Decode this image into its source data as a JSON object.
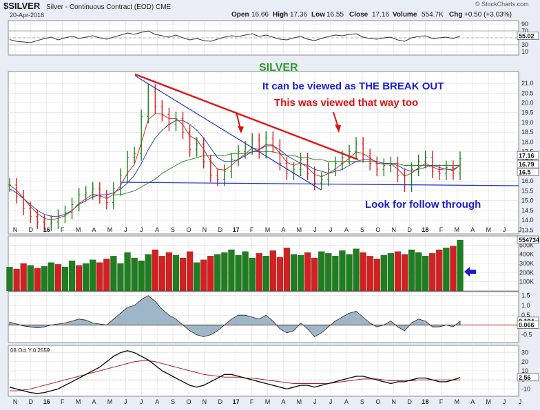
{
  "header": {
    "symbol": "$SILVER",
    "description": "Silver - Continuous Contract (EOD)",
    "exchange": "CME",
    "date": "20-Apr-2018",
    "open_label": "Open",
    "open": "16.66",
    "high_label": "High",
    "high": "17.36",
    "low_label": "Low",
    "low": "16.55",
    "close_label": "Close",
    "close": "17.16",
    "volume_label": "Volume",
    "volume": "554.7K",
    "chg_label": "Chg",
    "chg": "+0.50 (+3.03%)",
    "copyright": "© StockCharts.com"
  },
  "annotations": {
    "title": "SILVER",
    "breakout": "It can be viewed as THE BREAK OUT",
    "viewed": "This was viewed that way too",
    "follow": "Look for follow through"
  },
  "indicator_label": "08 Oct Y:0.2559",
  "colors": {
    "background": "#e9eef6",
    "panel": "#ffffff",
    "price": "#1a1a1a",
    "bar_up": "#1e7f1e",
    "bar_down": "#d42020",
    "downtrend_red": "#e01818",
    "trend_blue": "#2030c8",
    "ma_green": "#2c8a2c",
    "ma_blue": "#2a3fbf",
    "ma_red": "#d42a2a",
    "title_green": "#2f9a2f",
    "text_blue": "#1c1ccf",
    "text_red": "#dd1111"
  },
  "chart_data": {
    "type": "line",
    "x_tick_labels": [
      "N",
      "D",
      "16",
      "F",
      "M",
      "A",
      "M",
      "J",
      "J",
      "A",
      "S",
      "O",
      "N",
      "D",
      "17",
      "F",
      "M",
      "A",
      "M",
      "J",
      "J",
      "A",
      "S",
      "O",
      "N",
      "D",
      "18",
      "F",
      "M",
      "A",
      "M",
      "J",
      "J"
    ],
    "price": {
      "y_ticks": [
        13.5,
        14.0,
        14.5,
        15.0,
        15.5,
        16.0,
        16.5,
        17.0,
        17.5,
        18.0,
        18.5,
        19.0,
        19.5,
        20.0,
        20.5,
        21.0
      ],
      "ylim": [
        13.3,
        21.6
      ],
      "last_price": "17.16",
      "ma_value": "16.79",
      "ma_value2": "16.5",
      "x": [
        0,
        2,
        4,
        6,
        8,
        10,
        12,
        14,
        16,
        18,
        20,
        22,
        24,
        26,
        28,
        30,
        32,
        34,
        36,
        38,
        40,
        42,
        44,
        46,
        48,
        50,
        52,
        54,
        56,
        58,
        60,
        62,
        64,
        66,
        68,
        70,
        72,
        74,
        76,
        78,
        80,
        82,
        84,
        86,
        88,
        90,
        92,
        94,
        96,
        98,
        100,
        102,
        104,
        106,
        108,
        110,
        112,
        114,
        116,
        118,
        120,
        122,
        124,
        126,
        128,
        130
      ],
      "close": [
        15.8,
        15.2,
        14.6,
        14.2,
        13.9,
        13.8,
        13.9,
        14.2,
        14.4,
        14.8,
        15.3,
        15.4,
        15.6,
        15.2,
        14.9,
        15.6,
        16.3,
        17.2,
        17.4,
        19.3,
        20.6,
        19.8,
        19.4,
        18.9,
        19.2,
        18.5,
        17.6,
        17.9,
        17.0,
        16.3,
        16.1,
        16.5,
        17.1,
        17.5,
        17.7,
        18.1,
        17.5,
        18.2,
        17.8,
        16.9,
        16.4,
        16.6,
        17.1,
        16.4,
        15.9,
        16.1,
        16.6,
        16.9,
        17.2,
        17.5,
        17.9,
        17.3,
        16.9,
        16.6,
        16.8,
        16.9,
        16.3,
        15.8,
        16.6,
        17.0,
        17.2,
        16.5,
        16.4,
        16.7,
        16.4,
        17.16
      ],
      "sma50": [
        15.6,
        15.4,
        15.1,
        14.8,
        14.5,
        14.3,
        14.2,
        14.2,
        14.3,
        14.5,
        14.8,
        15.0,
        15.2,
        15.3,
        15.3,
        15.4,
        15.6,
        15.9,
        16.3,
        16.9,
        17.6,
        18.2,
        18.6,
        18.9,
        19.1,
        19.1,
        18.9,
        18.6,
        18.2,
        17.7,
        17.2,
        17.0,
        17.0,
        17.1,
        17.3,
        17.5,
        17.6,
        17.8,
        17.8,
        17.6,
        17.3,
        17.1,
        16.9,
        16.8,
        16.6,
        16.5,
        16.4,
        16.5,
        16.6,
        16.8,
        17.0,
        17.1,
        17.1,
        17.0,
        16.9,
        16.9,
        16.8,
        16.6,
        16.5,
        16.6,
        16.7,
        16.8,
        16.7,
        16.6,
        16.6,
        16.79
      ],
      "sma200": [
        16.3,
        16.2,
        16.0,
        15.8,
        15.6,
        15.4,
        15.3,
        15.2,
        15.2,
        15.2,
        15.2,
        15.2,
        15.2,
        15.2,
        15.2,
        15.3,
        15.3,
        15.4,
        15.5,
        15.7,
        15.9,
        16.1,
        16.4,
        16.6,
        16.8,
        17.0,
        17.1,
        17.2,
        17.3,
        17.3,
        17.3,
        17.3,
        17.4,
        17.4,
        17.4,
        17.5,
        17.5,
        17.5,
        17.5,
        17.4,
        17.3,
        17.3,
        17.2,
        17.2,
        17.1,
        17.1,
        17.0,
        17.0,
        17.0,
        17.0,
        17.0,
        17.0,
        17.0,
        17.0,
        16.9,
        16.9,
        16.9,
        16.8,
        16.8,
        16.8,
        16.8,
        16.8,
        16.8,
        16.8,
        16.8,
        16.8
      ],
      "sma200_start_x": 30
    },
    "rsi": {
      "y_ticks": [
        10,
        30,
        50,
        70,
        90
      ],
      "ylim": [
        0,
        100
      ],
      "last": "55.02",
      "values": [
        45,
        40,
        38,
        36,
        42,
        48,
        52,
        44,
        50,
        55,
        48,
        52,
        56,
        50,
        46,
        52,
        58,
        64,
        60,
        66,
        70,
        60,
        56,
        52,
        58,
        50,
        44,
        48,
        42,
        40,
        46,
        52,
        56,
        54,
        58,
        62,
        54,
        58,
        52,
        46,
        44,
        50,
        54,
        46,
        42,
        48,
        54,
        58,
        56,
        60,
        62,
        52,
        48,
        46,
        50,
        52,
        44,
        40,
        50,
        54,
        56,
        48,
        50,
        52,
        48,
        55
      ]
    },
    "volume": {
      "y_ticks_label": [
        "100K",
        "200K",
        "300K",
        "400K",
        "500K"
      ],
      "y_ticks": [
        100,
        200,
        300,
        400,
        500
      ],
      "ylim": [
        0,
        600
      ],
      "last": "554734",
      "values": [
        260,
        240,
        300,
        280,
        250,
        270,
        310,
        290,
        260,
        330,
        280,
        300,
        340,
        310,
        350,
        380,
        300,
        420,
        360,
        330,
        400,
        450,
        380,
        420,
        390,
        360,
        430,
        310,
        340,
        380,
        400,
        420,
        450,
        390,
        430,
        360,
        410,
        380,
        440,
        370,
        470,
        400,
        390,
        420,
        360,
        430,
        410,
        380,
        440,
        400,
        460,
        420,
        380,
        350,
        390,
        410,
        430,
        400,
        450,
        420,
        380,
        410,
        450,
        470,
        490,
        555
      ],
      "up": [
        1,
        0,
        0,
        1,
        0,
        1,
        1,
        0,
        1,
        1,
        0,
        1,
        1,
        0,
        0,
        1,
        1,
        1,
        1,
        1,
        1,
        0,
        0,
        0,
        1,
        0,
        0,
        1,
        0,
        0,
        1,
        1,
        1,
        1,
        1,
        1,
        0,
        1,
        0,
        0,
        0,
        1,
        1,
        0,
        0,
        1,
        1,
        1,
        1,
        1,
        1,
        0,
        0,
        0,
        1,
        1,
        0,
        0,
        1,
        1,
        1,
        0,
        0,
        1,
        0,
        1
      ]
    },
    "macd": {
      "y_ticks": [
        -0.5,
        0.0,
        0.5,
        1.0,
        1.5
      ],
      "ylim": [
        -0.9,
        1.7
      ],
      "last": "0.194",
      "signal": "0.066",
      "values": [
        0.15,
        0.05,
        -0.05,
        -0.1,
        -0.15,
        -0.1,
        0.0,
        0.05,
        0.1,
        0.2,
        0.3,
        0.25,
        0.1,
        0.05,
        0.0,
        0.3,
        0.6,
        0.9,
        1.0,
        1.3,
        1.5,
        1.2,
        0.8,
        0.5,
        0.3,
        0.0,
        -0.3,
        -0.5,
        -0.6,
        -0.5,
        -0.3,
        0.0,
        0.3,
        0.5,
        0.5,
        0.4,
        0.3,
        0.5,
        0.2,
        -0.2,
        -0.4,
        -0.3,
        0.1,
        -0.2,
        -0.6,
        -0.4,
        -0.1,
        0.2,
        0.4,
        0.6,
        0.7,
        0.4,
        0.1,
        -0.1,
        0.0,
        0.2,
        -0.1,
        -0.3,
        0.1,
        0.3,
        0.2,
        -0.1,
        -0.1,
        0.0,
        -0.1,
        0.194
      ]
    },
    "osc": {
      "y_ticks": [
        -10,
        0,
        10,
        20,
        30
      ],
      "ylim": [
        -18,
        38
      ],
      "last": "2.56",
      "values": [
        -8,
        -10,
        -12,
        -14,
        -15,
        -14,
        -12,
        -10,
        -6,
        -2,
        2,
        6,
        10,
        14,
        20,
        26,
        30,
        32,
        30,
        26,
        22,
        16,
        10,
        6,
        2,
        -2,
        -6,
        -8,
        -6,
        -2,
        2,
        6,
        6,
        4,
        2,
        0,
        -2,
        -4,
        -6,
        -8,
        -10,
        -8,
        -6,
        -6,
        -8,
        -6,
        -4,
        -2,
        0,
        2,
        4,
        4,
        2,
        0,
        -2,
        -4,
        -2,
        -2,
        0,
        2,
        2,
        0,
        -2,
        -2,
        0,
        2.56
      ],
      "signal": [
        -12,
        -12,
        -11,
        -10,
        -8,
        -6,
        -4,
        -2,
        0,
        2,
        4,
        6,
        8,
        10,
        12,
        14,
        16,
        18,
        20,
        21,
        21,
        20,
        18,
        16,
        14,
        12,
        10,
        8,
        6,
        5,
        4,
        3,
        3,
        3,
        2,
        2,
        1,
        0,
        -1,
        -2,
        -3,
        -4,
        -4,
        -4,
        -4,
        -4,
        -4,
        -3,
        -2,
        -1,
        0,
        1,
        1,
        1,
        0,
        -1,
        -1,
        -1,
        -1,
        0,
        0,
        0,
        0,
        0,
        0,
        0
      ]
    }
  }
}
